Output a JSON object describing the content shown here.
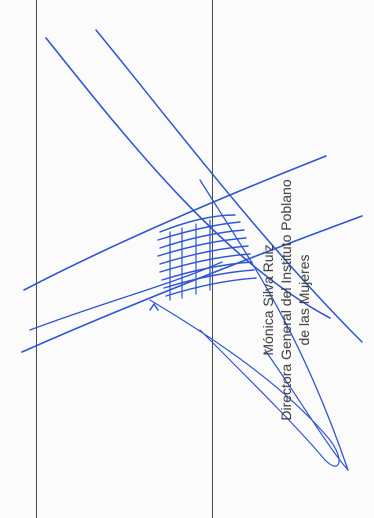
{
  "signature_block": {
    "name": "Mónica Silva Ruiz",
    "title_line1": "Directora General del Instituto Poblano",
    "title_line2": "de las Mujeres"
  },
  "colors": {
    "ink": "#2f55d4",
    "rule": "#4a4a4a",
    "text": "#3a3a3a"
  }
}
